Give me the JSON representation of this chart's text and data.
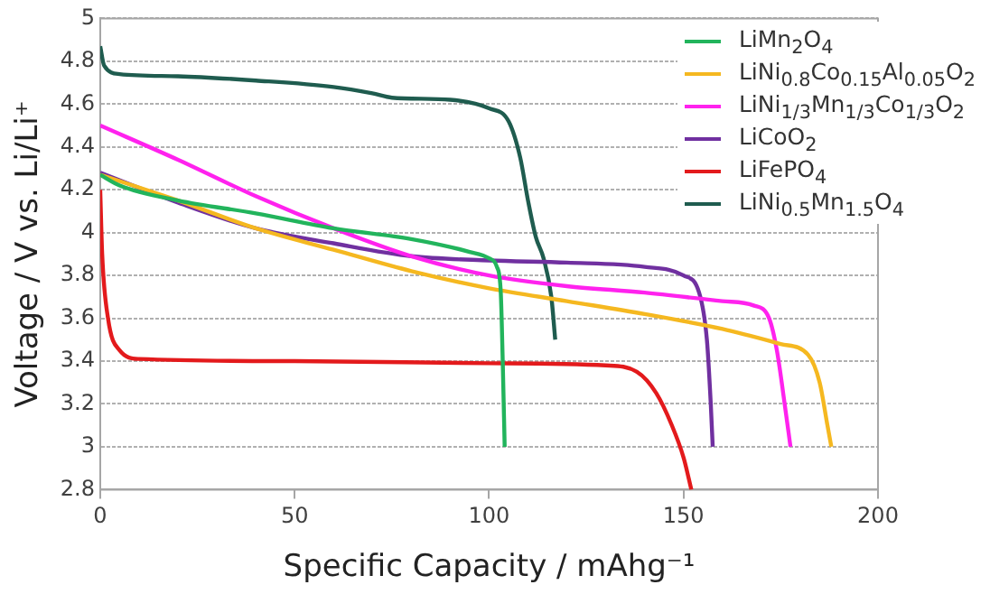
{
  "chart_data": {
    "type": "line",
    "xlabel": "Specific Capacity / mAhg⁻¹",
    "ylabel": "Voltage / V vs. Li/Li⁺",
    "xlim": [
      0,
      200
    ],
    "xticks": [
      0,
      50,
      100,
      150,
      200
    ],
    "ylim": [
      2.8,
      5
    ],
    "yticks": [
      2.8,
      3,
      3.2,
      3.4,
      3.6,
      3.8,
      4,
      4.2,
      4.4,
      4.6,
      4.8,
      5
    ],
    "grid": "y",
    "legend": "top right",
    "marker": "none",
    "line_style": "solid",
    "series": [
      {
        "name": "LiMn$_{2}$O$_{4}$",
        "color": "#22b45c",
        "x": [
          0,
          5,
          20,
          40,
          60,
          80,
          95,
          100,
          102,
          103,
          103.5,
          104
        ],
        "values": [
          4.27,
          4.22,
          4.15,
          4.09,
          4.02,
          3.97,
          3.91,
          3.88,
          3.84,
          3.72,
          3.4,
          3.0
        ]
      },
      {
        "name": "LiNi$_{0.8}$Co$_{0.15}$Al$_{0.05}$O$_{2}$",
        "color": "#f5b820",
        "x": [
          0,
          20,
          40,
          60,
          80,
          100,
          120,
          140,
          160,
          175,
          182,
          185,
          187,
          188
        ],
        "values": [
          4.27,
          4.15,
          4.02,
          3.92,
          3.82,
          3.74,
          3.68,
          3.62,
          3.55,
          3.48,
          3.43,
          3.3,
          3.1,
          3.0
        ]
      },
      {
        "name": "LiNi$_{1/3}$Mn$_{1/3}$Co$_{1/3}$O$_{2}$",
        "color": "#ff22ee",
        "x": [
          0,
          20,
          40,
          60,
          80,
          100,
          120,
          140,
          160,
          168,
          172,
          174,
          176,
          177.5
        ],
        "values": [
          4.5,
          4.34,
          4.17,
          4.02,
          3.89,
          3.8,
          3.75,
          3.72,
          3.68,
          3.66,
          3.6,
          3.45,
          3.2,
          3.0
        ]
      },
      {
        "name": "LiCoO$_{2}$",
        "color": "#7030a0",
        "x": [
          0,
          20,
          40,
          60,
          80,
          100,
          120,
          140,
          150,
          154,
          156,
          157,
          157.5
        ],
        "values": [
          4.28,
          4.14,
          4.02,
          3.95,
          3.89,
          3.87,
          3.86,
          3.84,
          3.8,
          3.72,
          3.5,
          3.2,
          3.0
        ]
      },
      {
        "name": "LiFePO$_{4}$",
        "color": "#e31a1c",
        "x": [
          0,
          0.5,
          2,
          5,
          10,
          50,
          100,
          130,
          138,
          143,
          147,
          150,
          152
        ],
        "values": [
          4.2,
          3.9,
          3.6,
          3.45,
          3.41,
          3.4,
          3.39,
          3.38,
          3.35,
          3.25,
          3.1,
          2.95,
          2.8
        ]
      },
      {
        "name": "LiNi$_{0.5}$Mn$_{1.5}$O$_{4}$",
        "color": "#1f5c4f",
        "x": [
          0,
          1,
          5,
          20,
          40,
          60,
          70,
          75,
          90,
          100,
          105,
          108,
          110,
          112,
          114,
          116,
          117
        ],
        "values": [
          4.87,
          4.78,
          4.74,
          4.73,
          4.71,
          4.68,
          4.65,
          4.63,
          4.62,
          4.58,
          4.52,
          4.35,
          4.15,
          3.98,
          3.88,
          3.7,
          3.5
        ]
      }
    ]
  }
}
